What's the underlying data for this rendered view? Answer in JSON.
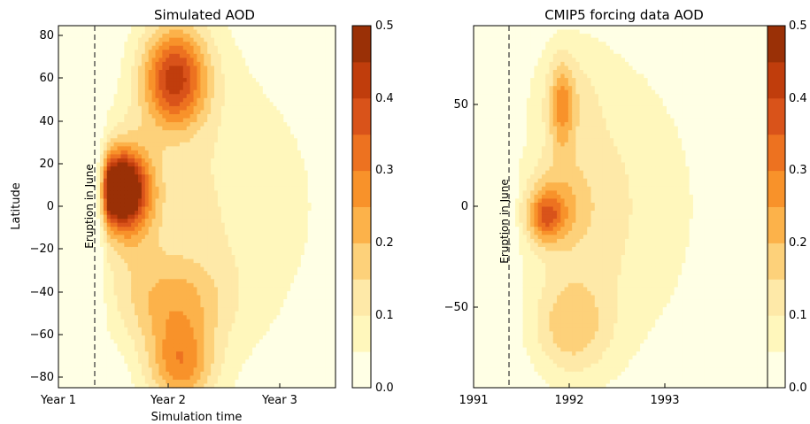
{
  "chart_data": [
    {
      "type": "heatmap",
      "title": "Simulated AOD",
      "xlabel": "Simulation time",
      "ylabel": "Latitude",
      "x_ticks": [
        "Year 1",
        "Year 2",
        "Year 3"
      ],
      "y_ticks": [
        "−80",
        "−60",
        "−40",
        "−20",
        "0",
        "20",
        "40",
        "60",
        "80"
      ],
      "ylim": [
        -85,
        85
      ],
      "annotation": "Eruption in June",
      "colorbar": {
        "levels": [
          0.0,
          0.05,
          0.1,
          0.15,
          0.2,
          0.25,
          0.3,
          0.35,
          0.4,
          0.45,
          0.5
        ],
        "ticks": [
          "0.0",
          "0.1",
          "0.2",
          "0.3",
          "0.4",
          "0.5"
        ]
      },
      "blobs": [
        {
          "t": 0.55,
          "lat": 8,
          "st": 0.22,
          "sl": 16,
          "amp": 0.48
        },
        {
          "t": 0.62,
          "lat": 5,
          "st": 0.28,
          "sl": 30,
          "amp": 0.2
        },
        {
          "t": 1.05,
          "lat": 58,
          "st": 0.28,
          "sl": 22,
          "amp": 0.3
        },
        {
          "t": 1.05,
          "lat": 72,
          "st": 0.35,
          "sl": 25,
          "amp": 0.1
        },
        {
          "t": 1.1,
          "lat": -75,
          "st": 0.3,
          "sl": 20,
          "amp": 0.23
        },
        {
          "t": 1.0,
          "lat": -45,
          "st": 0.5,
          "sl": 22,
          "amp": 0.15
        },
        {
          "t": 1.15,
          "lat": 0,
          "st": 0.65,
          "sl": 80,
          "amp": 0.08
        },
        {
          "t": 2.0,
          "lat": 0,
          "st": 0.9,
          "sl": 90,
          "amp": 0.05
        }
      ]
    },
    {
      "type": "heatmap",
      "title": "CMIP5 forcing data AOD",
      "xlabel": "",
      "ylabel": "",
      "x_ticks": [
        "1991",
        "1992",
        "1993"
      ],
      "y_ticks": [
        "−50",
        "0",
        "50"
      ],
      "ylim": [
        -90,
        90
      ],
      "annotation": "Eruption in June",
      "colorbar": {
        "levels": [
          0.0,
          0.05,
          0.1,
          0.15,
          0.2,
          0.25,
          0.3,
          0.35,
          0.4,
          0.45,
          0.5
        ],
        "ticks": [
          "0.0",
          "0.1",
          "0.2",
          "0.3",
          "0.4",
          "0.5"
        ]
      },
      "blobs": [
        {
          "t": 0.75,
          "lat": -5,
          "st": 0.18,
          "sl": 12,
          "amp": 0.2
        },
        {
          "t": 0.85,
          "lat": 0,
          "st": 0.35,
          "sl": 22,
          "amp": 0.13
        },
        {
          "t": 0.92,
          "lat": 50,
          "st": 0.12,
          "sl": 22,
          "amp": 0.16
        },
        {
          "t": 0.95,
          "lat": 55,
          "st": 0.35,
          "sl": 28,
          "amp": 0.07
        },
        {
          "t": 1.0,
          "lat": -60,
          "st": 0.4,
          "sl": 25,
          "amp": 0.14
        },
        {
          "t": 1.2,
          "lat": 0,
          "st": 0.7,
          "sl": 80,
          "amp": 0.09
        },
        {
          "t": 2.0,
          "lat": 0,
          "st": 0.9,
          "sl": 90,
          "amp": 0.045
        }
      ]
    }
  ],
  "palette": [
    "#ffffe5",
    "#fff7bc",
    "#fee9a8",
    "#fdd17a",
    "#fcb24a",
    "#f8922a",
    "#ed7220",
    "#d9531a",
    "#c03d0c",
    "#9a3006",
    "#6b2408"
  ]
}
